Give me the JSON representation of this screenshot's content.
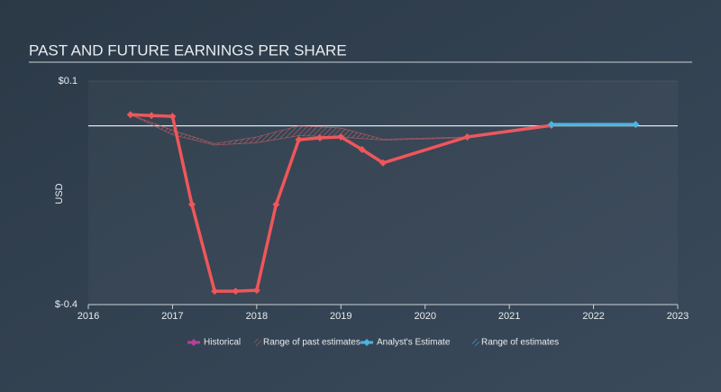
{
  "chart_data": {
    "type": "line",
    "title": "PAST AND FUTURE EARNINGS PER SHARE",
    "y_label": "USD",
    "xlim": [
      2016,
      2023
    ],
    "xticks": [
      2016,
      2017,
      2018,
      2019,
      2020,
      2021,
      2022,
      2023
    ],
    "ylim": [
      -0.4,
      0.1
    ],
    "yticks": [
      {
        "value": 0.1,
        "label": "$0.1"
      },
      {
        "value": -0.4,
        "label": "$-0.4"
      }
    ],
    "zero_line": true,
    "series": [
      {
        "name": "Historical",
        "color": "#b5409b",
        "line_color": "#f0565a",
        "x": [
          2016.5,
          2016.75,
          2017.0,
          2017.23,
          2017.5,
          2017.75,
          2018.0,
          2018.23,
          2018.5,
          2018.75,
          2019.0,
          2019.25,
          2019.5,
          2020.5,
          2021.5
        ],
        "values": [
          0.025,
          0.023,
          0.021,
          -0.176,
          -0.37,
          -0.37,
          -0.368,
          -0.176,
          -0.031,
          -0.027,
          -0.025,
          -0.053,
          -0.083,
          -0.025,
          0.001
        ]
      },
      {
        "name": "Range of past estimates",
        "color": "#b5409b",
        "kind": "range",
        "x": [
          2016.5,
          2017.0,
          2017.5,
          2018.0,
          2018.5,
          2019.0,
          2019.5,
          2020.5,
          2021.5
        ],
        "high": [
          0.025,
          -0.01,
          -0.04,
          -0.025,
          0.0,
          -0.005,
          -0.03,
          -0.025,
          0.001
        ],
        "low": [
          0.025,
          -0.02,
          -0.043,
          -0.038,
          -0.022,
          -0.025,
          -0.032,
          -0.027,
          0.001
        ]
      },
      {
        "name": "Analyst's Estimate",
        "color": "#4ab5e0",
        "x": [
          2021.5,
          2022.5
        ],
        "values": [
          0.003,
          0.003
        ]
      },
      {
        "name": "Range of estimates",
        "color": "#4ab5e0",
        "kind": "range",
        "x": [
          2021.5,
          2022.5
        ],
        "high": [
          0.004,
          0.004
        ],
        "low": [
          0.002,
          0.002
        ]
      }
    ]
  }
}
